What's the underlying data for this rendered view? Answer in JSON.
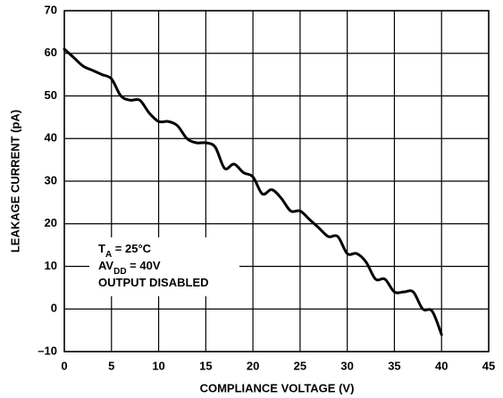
{
  "chart_data": {
    "type": "line",
    "xlabel": "COMPLIANCE VOLTAGE (V)",
    "ylabel": "LEAKAGE CURRENT (pA)",
    "x": [
      0,
      1,
      2,
      3,
      4,
      5,
      6,
      7,
      8,
      9,
      10,
      11,
      12,
      13,
      14,
      15,
      16,
      17,
      18,
      19,
      20,
      21,
      22,
      23,
      24,
      25,
      26,
      27,
      28,
      29,
      30,
      31,
      32,
      33,
      34,
      35,
      36,
      37,
      38,
      39,
      40
    ],
    "series": [
      {
        "color": "#000000",
        "values": [
          61,
          59,
          57,
          56,
          55,
          54,
          50,
          49,
          49,
          46,
          44,
          44,
          43,
          40,
          39,
          39,
          38,
          33,
          34,
          32,
          31,
          27,
          28,
          26,
          23,
          23,
          21,
          19,
          17,
          17,
          13,
          13,
          11,
          7,
          7,
          4,
          4,
          4,
          0,
          -0.5,
          -6
        ]
      }
    ],
    "xlim": [
      0,
      45
    ],
    "xticks": [
      0,
      5,
      10,
      15,
      20,
      25,
      30,
      35,
      40,
      45
    ],
    "ylim": [
      -10,
      70
    ],
    "yticks": [
      {
        "value": -10,
        "label": "–10"
      },
      0,
      10,
      20,
      30,
      40,
      50,
      60,
      70
    ],
    "grid": true,
    "annotations": [
      [
        {
          "text": "T"
        },
        {
          "text": "A",
          "sub": true
        },
        {
          "text": " = 25°C"
        }
      ],
      [
        {
          "text": "AV"
        },
        {
          "text": "DD",
          "sub": true
        },
        {
          "text": " = 40V"
        }
      ],
      [
        {
          "text": "OUTPUT DISABLED"
        }
      ]
    ]
  }
}
